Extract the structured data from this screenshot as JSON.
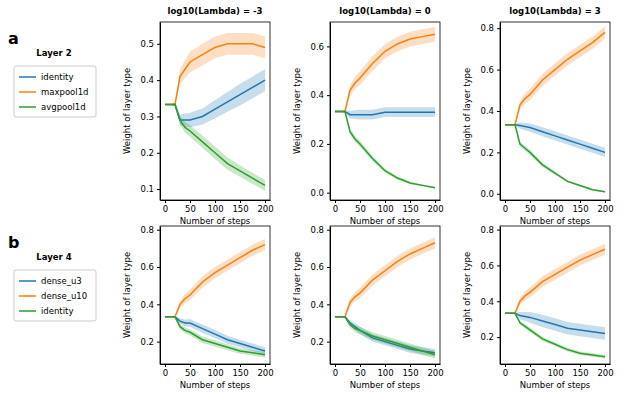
{
  "chart_data": [
    {
      "type": "line",
      "panel_label": "a",
      "legend_title": "Layer 2",
      "legend": "left",
      "title": "log10(Lambda) = -3",
      "x_label": "Number of steps",
      "y_label": "Weight of layer type",
      "x": [
        0,
        10,
        20,
        30,
        40,
        50,
        75,
        100,
        125,
        150,
        175,
        200
      ],
      "xlim": [
        -10,
        210
      ],
      "xticks": [
        0,
        50,
        100,
        150,
        200
      ],
      "ylim": [
        0.07,
        0.56
      ],
      "yticks": [
        0.1,
        0.2,
        0.3,
        0.4,
        0.5
      ],
      "series": [
        {
          "name": "identity",
          "color": "#1f77b4",
          "values": [
            0.333,
            0.333,
            0.333,
            0.29,
            0.29,
            0.29,
            0.3,
            0.32,
            0.34,
            0.36,
            0.38,
            0.4
          ],
          "std": [
            0,
            0,
            0.005,
            0.015,
            0.018,
            0.02,
            0.022,
            0.025,
            0.027,
            0.03,
            0.03,
            0.03
          ]
        },
        {
          "name": "maxpool1d",
          "color": "#ff7f0e",
          "values": [
            0.333,
            0.333,
            0.333,
            0.41,
            0.43,
            0.45,
            0.47,
            0.49,
            0.5,
            0.5,
            0.5,
            0.49
          ],
          "std": [
            0,
            0,
            0.005,
            0.02,
            0.025,
            0.028,
            0.03,
            0.03,
            0.03,
            0.03,
            0.03,
            0.03
          ]
        },
        {
          "name": "avgpool1d",
          "color": "#2ca02c",
          "values": [
            0.333,
            0.333,
            0.333,
            0.29,
            0.27,
            0.26,
            0.23,
            0.2,
            0.17,
            0.15,
            0.13,
            0.11
          ],
          "std": [
            0,
            0,
            0.005,
            0.012,
            0.015,
            0.016,
            0.017,
            0.017,
            0.017,
            0.016,
            0.015,
            0.015
          ]
        }
      ]
    },
    {
      "type": "line",
      "title": "log10(Lambda) = 0",
      "x_label": "Number of steps",
      "y_label": "Weight of layer type",
      "x": [
        0,
        10,
        20,
        30,
        40,
        50,
        75,
        100,
        125,
        150,
        175,
        200
      ],
      "xlim": [
        -10,
        210
      ],
      "xticks": [
        0,
        50,
        100,
        150,
        200
      ],
      "ylim": [
        -0.03,
        0.7
      ],
      "yticks": [
        {
          "value": 0,
          "label": "0.0"
        },
        0.2,
        0.4,
        0.6
      ],
      "series": [
        {
          "name": "identity",
          "color": "#1f77b4",
          "values": [
            0.333,
            0.333,
            0.333,
            0.32,
            0.32,
            0.32,
            0.32,
            0.33,
            0.33,
            0.33,
            0.33,
            0.33
          ],
          "std": [
            0,
            0,
            0.005,
            0.015,
            0.018,
            0.02,
            0.02,
            0.02,
            0.02,
            0.02,
            0.02,
            0.02
          ]
        },
        {
          "name": "maxpool1d",
          "color": "#ff7f0e",
          "values": [
            0.333,
            0.333,
            0.333,
            0.42,
            0.45,
            0.47,
            0.53,
            0.58,
            0.61,
            0.63,
            0.64,
            0.65
          ],
          "std": [
            0,
            0,
            0.005,
            0.02,
            0.025,
            0.028,
            0.03,
            0.03,
            0.03,
            0.03,
            0.03,
            0.03
          ]
        },
        {
          "name": "avgpool1d",
          "color": "#2ca02c",
          "values": [
            0.333,
            0.333,
            0.333,
            0.25,
            0.22,
            0.2,
            0.14,
            0.09,
            0.06,
            0.04,
            0.03,
            0.02
          ],
          "std": [
            0,
            0,
            0.005,
            0.012,
            0.012,
            0.012,
            0.01,
            0.008,
            0.006,
            0.005,
            0.004,
            0.004
          ]
        }
      ]
    },
    {
      "type": "line",
      "title": "log10(Lambda) = 3",
      "x_label": "Number of steps",
      "y_label": "Weight of layer type",
      "x": [
        0,
        10,
        20,
        30,
        40,
        50,
        75,
        100,
        125,
        150,
        175,
        200
      ],
      "xlim": [
        -10,
        210
      ],
      "xticks": [
        0,
        50,
        100,
        150,
        200
      ],
      "ylim": [
        -0.03,
        0.83
      ],
      "yticks": [
        {
          "value": 0,
          "label": "0.0"
        },
        0.2,
        0.4,
        0.6,
        0.8
      ],
      "series": [
        {
          "name": "identity",
          "color": "#1f77b4",
          "values": [
            0.333,
            0.333,
            0.333,
            0.33,
            0.325,
            0.32,
            0.3,
            0.28,
            0.26,
            0.24,
            0.22,
            0.2
          ],
          "std": [
            0,
            0,
            0.005,
            0.015,
            0.018,
            0.02,
            0.022,
            0.022,
            0.022,
            0.022,
            0.022,
            0.022
          ]
        },
        {
          "name": "maxpool1d",
          "color": "#ff7f0e",
          "values": [
            0.333,
            0.333,
            0.333,
            0.43,
            0.46,
            0.48,
            0.55,
            0.6,
            0.65,
            0.69,
            0.73,
            0.78
          ],
          "std": [
            0,
            0,
            0.005,
            0.02,
            0.025,
            0.028,
            0.03,
            0.03,
            0.03,
            0.03,
            0.03,
            0.03
          ]
        },
        {
          "name": "avgpool1d",
          "color": "#2ca02c",
          "values": [
            0.333,
            0.333,
            0.333,
            0.24,
            0.22,
            0.2,
            0.14,
            0.1,
            0.06,
            0.04,
            0.02,
            0.01
          ],
          "std": [
            0,
            0,
            0.005,
            0.012,
            0.012,
            0.012,
            0.01,
            0.008,
            0.006,
            0.005,
            0.004,
            0.004
          ]
        }
      ]
    },
    {
      "type": "line",
      "panel_label": "b",
      "legend_title": "Layer 4",
      "legend": "left",
      "x_label": "Number of steps",
      "y_label": "Weight of layer type",
      "x": [
        0,
        10,
        20,
        30,
        40,
        50,
        75,
        100,
        125,
        150,
        175,
        200
      ],
      "xlim": [
        -10,
        210
      ],
      "xticks": [
        0,
        50,
        100,
        150,
        200
      ],
      "ylim": [
        0.08,
        0.82
      ],
      "yticks": [
        0.2,
        0.4,
        0.6,
        0.8
      ],
      "series": [
        {
          "name": "dense_u3",
          "color": "#1f77b4",
          "values": [
            0.333,
            0.333,
            0.333,
            0.31,
            0.3,
            0.3,
            0.27,
            0.24,
            0.21,
            0.19,
            0.17,
            0.15
          ],
          "std": [
            0,
            0,
            0.005,
            0.015,
            0.018,
            0.02,
            0.022,
            0.022,
            0.022,
            0.02,
            0.02,
            0.02
          ]
        },
        {
          "name": "dense_u10",
          "color": "#ff7f0e",
          "values": [
            0.333,
            0.333,
            0.333,
            0.4,
            0.43,
            0.45,
            0.52,
            0.57,
            0.61,
            0.65,
            0.69,
            0.72
          ],
          "std": [
            0,
            0,
            0.005,
            0.02,
            0.025,
            0.028,
            0.03,
            0.03,
            0.03,
            0.03,
            0.03,
            0.03
          ]
        },
        {
          "name": "identity",
          "color": "#2ca02c",
          "values": [
            0.333,
            0.333,
            0.333,
            0.28,
            0.26,
            0.25,
            0.21,
            0.19,
            0.17,
            0.15,
            0.14,
            0.13
          ],
          "std": [
            0,
            0,
            0.005,
            0.015,
            0.016,
            0.017,
            0.017,
            0.017,
            0.016,
            0.015,
            0.015,
            0.015
          ]
        }
      ]
    },
    {
      "type": "line",
      "x_label": "Number of steps",
      "y_label": "Weight of layer type",
      "x": [
        0,
        10,
        20,
        30,
        40,
        50,
        75,
        100,
        125,
        150,
        175,
        200
      ],
      "xlim": [
        -10,
        210
      ],
      "xticks": [
        0,
        50,
        100,
        150,
        200
      ],
      "ylim": [
        0.08,
        0.82
      ],
      "yticks": [
        0.2,
        0.4,
        0.6,
        0.8
      ],
      "series": [
        {
          "name": "dense_u3",
          "color": "#1f77b4",
          "values": [
            0.333,
            0.333,
            0.333,
            0.3,
            0.28,
            0.26,
            0.22,
            0.2,
            0.18,
            0.16,
            0.15,
            0.14
          ],
          "std": [
            0,
            0,
            0.005,
            0.015,
            0.018,
            0.02,
            0.02,
            0.02,
            0.02,
            0.02,
            0.02,
            0.02
          ]
        },
        {
          "name": "dense_u10",
          "color": "#ff7f0e",
          "values": [
            0.333,
            0.333,
            0.333,
            0.41,
            0.44,
            0.46,
            0.53,
            0.58,
            0.63,
            0.67,
            0.7,
            0.73
          ],
          "std": [
            0,
            0,
            0.005,
            0.02,
            0.025,
            0.028,
            0.03,
            0.03,
            0.03,
            0.03,
            0.03,
            0.03
          ]
        },
        {
          "name": "identity",
          "color": "#2ca02c",
          "values": [
            0.333,
            0.333,
            0.333,
            0.29,
            0.27,
            0.26,
            0.23,
            0.21,
            0.19,
            0.17,
            0.15,
            0.13
          ],
          "std": [
            0,
            0,
            0.005,
            0.015,
            0.018,
            0.02,
            0.02,
            0.02,
            0.02,
            0.02,
            0.02,
            0.02
          ]
        }
      ]
    },
    {
      "type": "line",
      "x_label": "Number of steps",
      "y_label": "Weight of layer type",
      "x": [
        0,
        10,
        20,
        30,
        40,
        50,
        75,
        100,
        125,
        150,
        175,
        200
      ],
      "xlim": [
        -10,
        210
      ],
      "xticks": [
        0,
        50,
        100,
        150,
        200
      ],
      "ylim": [
        0.05,
        0.82
      ],
      "yticks": [
        0.2,
        0.4,
        0.6,
        0.8
      ],
      "series": [
        {
          "name": "dense_u3",
          "color": "#1f77b4",
          "values": [
            0.333,
            0.333,
            0.333,
            0.32,
            0.315,
            0.31,
            0.29,
            0.27,
            0.25,
            0.24,
            0.23,
            0.22
          ],
          "std": [
            0,
            0,
            0.005,
            0.02,
            0.025,
            0.03,
            0.035,
            0.035,
            0.035,
            0.035,
            0.035,
            0.035
          ]
        },
        {
          "name": "dense_u10",
          "color": "#ff7f0e",
          "values": [
            0.333,
            0.333,
            0.333,
            0.4,
            0.43,
            0.45,
            0.51,
            0.55,
            0.59,
            0.63,
            0.66,
            0.69
          ],
          "std": [
            0,
            0,
            0.005,
            0.02,
            0.025,
            0.028,
            0.03,
            0.03,
            0.03,
            0.03,
            0.03,
            0.03
          ]
        },
        {
          "name": "identity",
          "color": "#2ca02c",
          "values": [
            0.333,
            0.333,
            0.333,
            0.28,
            0.26,
            0.24,
            0.19,
            0.16,
            0.13,
            0.11,
            0.1,
            0.09
          ],
          "std": [
            0,
            0,
            0.005,
            0.012,
            0.012,
            0.012,
            0.012,
            0.01,
            0.01,
            0.01,
            0.01,
            0.01
          ]
        }
      ]
    }
  ]
}
